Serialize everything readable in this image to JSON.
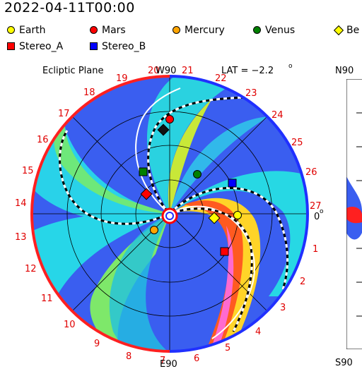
{
  "timestamp": "2022-04-11T00:00",
  "legend": [
    {
      "label": "Earth",
      "shape": "circle",
      "color": "#ffff00"
    },
    {
      "label": "Mars",
      "shape": "circle",
      "color": "#ff0000"
    },
    {
      "label": "Mercury",
      "shape": "circle",
      "color": "#ffa500"
    },
    {
      "label": "Venus",
      "shape": "circle",
      "color": "#008000"
    },
    {
      "label": "Be",
      "shape": "diamond",
      "color": "#ffff00"
    },
    {
      "label": "Stereo_A",
      "shape": "square",
      "color": "#ff0000"
    },
    {
      "label": "Stereo_B",
      "shape": "square",
      "color": "#0000ff"
    }
  ],
  "plot": {
    "title": "Ecliptic Plane",
    "lat_label": "LAT = −2.2",
    "lat_degree": "o",
    "top_label": "W90",
    "bottom_label": "E90",
    "right_label": "0",
    "right_degree": "o",
    "side_top_label": "N90",
    "side_bottom_label": "S90",
    "carrington_labels": [
      "1",
      "2",
      "3",
      "4",
      "5",
      "6",
      "7",
      "8",
      "9",
      "10",
      "11",
      "12",
      "13",
      "14",
      "15",
      "16",
      "17",
      "18",
      "19",
      "20",
      "21",
      "22",
      "23",
      "24",
      "25",
      "26",
      "27"
    ]
  },
  "colors": {
    "red_arc": "#ff2020",
    "blue_arc": "#2030ff",
    "label_red": "#e00000"
  }
}
